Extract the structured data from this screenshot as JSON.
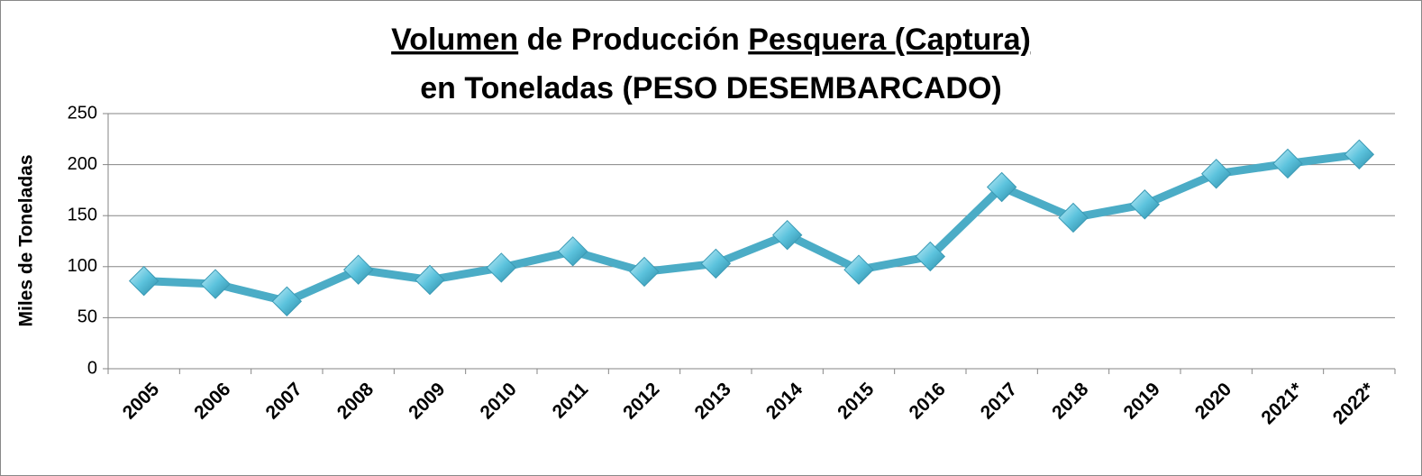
{
  "chart_data": {
    "type": "line",
    "title_lines": [
      [
        {
          "text": "Volumen",
          "underline": true
        },
        {
          "text": " de Producción "
        },
        {
          "text": "Pesquera (Captura)",
          "underline": true
        }
      ],
      [
        {
          "text": "en Toneladas (PESO DESEMBARCADO)"
        }
      ]
    ],
    "y_label": "Miles  de Toneladas",
    "categories": [
      "2005",
      "2006",
      "2007",
      "2008",
      "2009",
      "2010",
      "2011",
      "2012",
      "2013",
      "2014",
      "2015",
      "2016",
      "2017",
      "2018",
      "2019",
      "2020",
      "2021*",
      "2022*"
    ],
    "values": [
      86,
      83,
      66,
      97,
      87,
      99,
      115,
      95,
      103,
      131,
      97,
      110,
      178,
      148,
      161,
      191,
      201,
      210
    ],
    "color": "#4bacc6",
    "ylim": [
      0,
      250
    ],
    "yticks": [
      0,
      50,
      100,
      150,
      200,
      250
    ],
    "grid": true
  }
}
